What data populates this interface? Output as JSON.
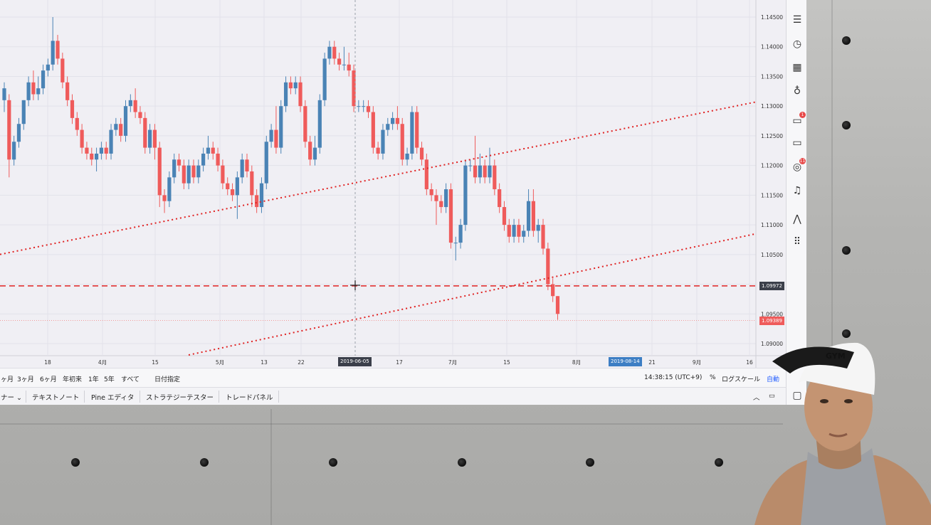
{
  "chart": {
    "price_axis": [
      "1.14500",
      "1.14000",
      "1.13500",
      "1.13000",
      "1.12500",
      "1.12000",
      "1.11500",
      "1.11000",
      "1.10500",
      "1.10000",
      "1.09500",
      "1.09000"
    ],
    "time_axis": [
      "18",
      "4月",
      "15",
      "5月",
      "13",
      "22",
      "17",
      "7月",
      "15",
      "8月",
      "21",
      "9月",
      "16"
    ],
    "crosshair_date": "2019-06-05",
    "highlight_date": "2019-08-14",
    "crosshair_price": "1.09972",
    "last_price": "1.09389",
    "colors": {
      "up": "#4a83b5",
      "down": "#ef5b5b",
      "trendline": "#e02222",
      "grid": "#e2e2ea"
    }
  },
  "range_bar": {
    "ranges": [
      "ヶ月",
      "3ヶ月",
      "6ヶ月",
      "年初来",
      "1年",
      "5年",
      "すべて",
      "日付指定"
    ],
    "time": "14:38:15 (UTC+9)",
    "percent": "%",
    "log_scale": "ログスケール",
    "auto": "自動"
  },
  "bottom_tabs": [
    "ナー",
    "テキストノート",
    "Pine エディタ",
    "ストラテジーテスター",
    "トレードパネル"
  ],
  "toolbar": {
    "icons": [
      "watchlist-icon",
      "clock-icon",
      "calendar-icon",
      "idea-icon",
      "chat-icon",
      "message-icon",
      "broadcast-icon",
      "alert-icon",
      "trend-icon",
      "grid-icon"
    ],
    "badges": [
      "1",
      "11"
    ]
  },
  "cap_text": "GYM"
}
